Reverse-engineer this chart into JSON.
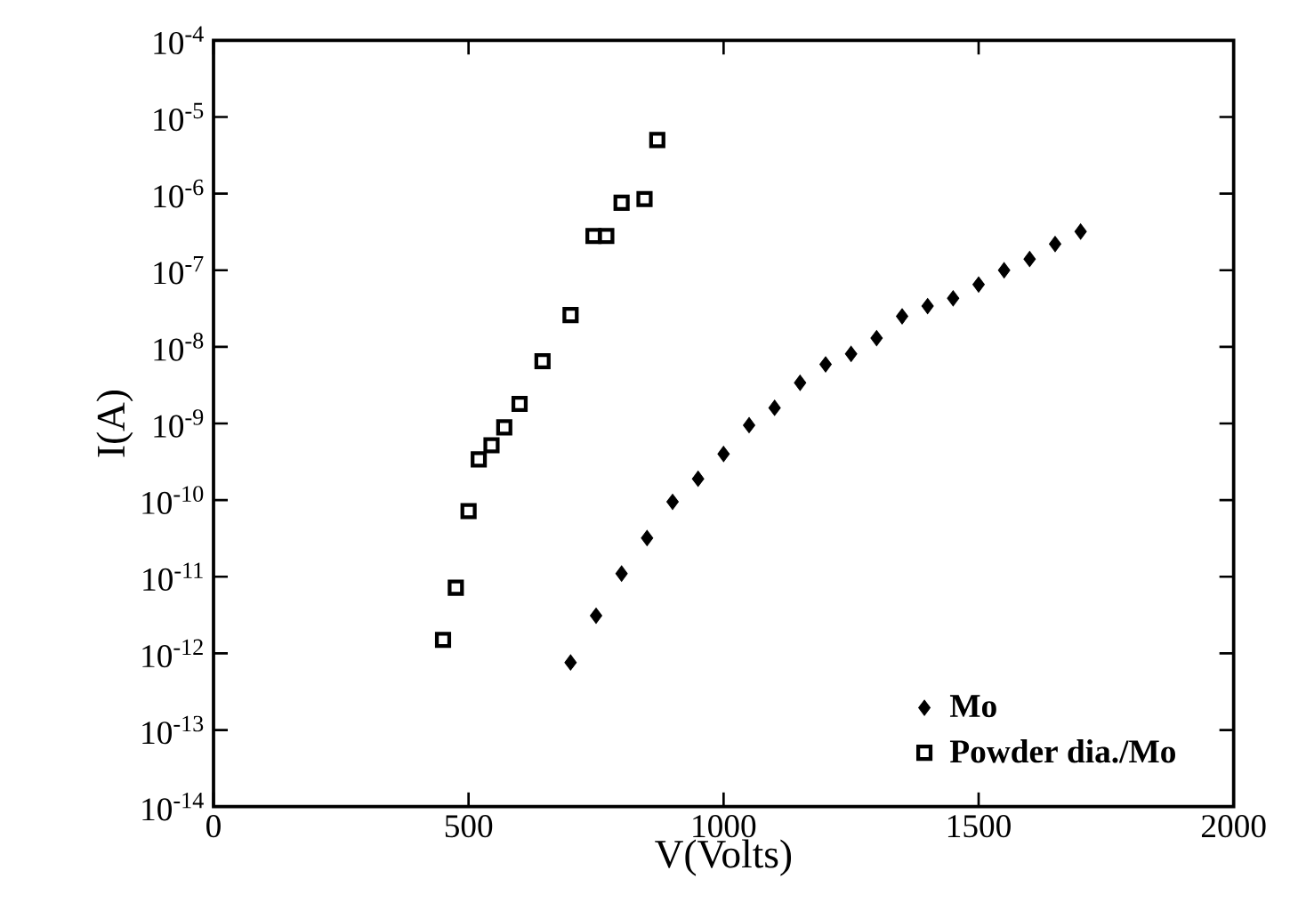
{
  "chart_data": {
    "type": "scatter",
    "xlabel": "V(Volts)",
    "ylabel": "I(A)",
    "xlim": [
      0,
      2000
    ],
    "xticks": [
      0,
      500,
      1000,
      1500,
      2000
    ],
    "ylim": [
      1e-14,
      0.0001
    ],
    "yticks": [
      {
        "value": 1e-14,
        "label": "10$^{-14}$"
      },
      {
        "value": 1e-13,
        "label": "10$^{-13}$"
      },
      {
        "value": 1e-12,
        "label": "10$^{-12}$"
      },
      {
        "value": 1e-11,
        "label": "10$^{-11}$"
      },
      {
        "value": 1e-10,
        "label": "10$^{-10}$"
      },
      {
        "value": 1e-09,
        "label": "10$^{-9}$"
      },
      {
        "value": 1e-08,
        "label": "10$^{-8}$"
      },
      {
        "value": 1e-07,
        "label": "10$^{-7}$"
      },
      {
        "value": 1e-06,
        "label": "10$^{-6}$"
      },
      {
        "value": 1e-05,
        "label": "10$^{-5}$"
      },
      {
        "value": 0.0001,
        "label": "10$^{-4}$"
      }
    ],
    "log": "y",
    "grid": false,
    "legend": "bottom right",
    "series": [
      {
        "name": "Mo",
        "color": "#000000",
        "marker": "diamond",
        "x": [
          700,
          750,
          800,
          850,
          900,
          950,
          1000,
          1050,
          1100,
          1150,
          1200,
          1250,
          1300,
          1350,
          1400,
          1450,
          1500,
          1550,
          1600,
          1650,
          1700
        ],
        "values": [
          7.6e-13,
          3.1e-12,
          1.1e-11,
          3.2e-11,
          9.5e-11,
          1.9e-10,
          4e-10,
          9.5e-10,
          1.6e-09,
          3.4e-09,
          5.9e-09,
          8.1e-09,
          1.3e-08,
          2.5e-08,
          3.4e-08,
          4.3e-08,
          6.5e-08,
          1e-07,
          1.4e-07,
          2.2e-07,
          3.2e-07
        ]
      },
      {
        "name": "Powder dia./Mo",
        "color": "#000000",
        "marker": "square",
        "x": [
          450,
          475,
          500,
          520,
          545,
          570,
          600,
          645,
          700,
          745,
          770,
          800,
          845,
          870
        ],
        "values": [
          1.5e-12,
          7.2e-12,
          7.2e-11,
          3.4e-10,
          5.2e-10,
          8.9e-10,
          1.8e-09,
          6.5e-09,
          2.6e-08,
          2.8e-07,
          2.8e-07,
          7.6e-07,
          8.5e-07,
          5e-06
        ]
      }
    ]
  }
}
